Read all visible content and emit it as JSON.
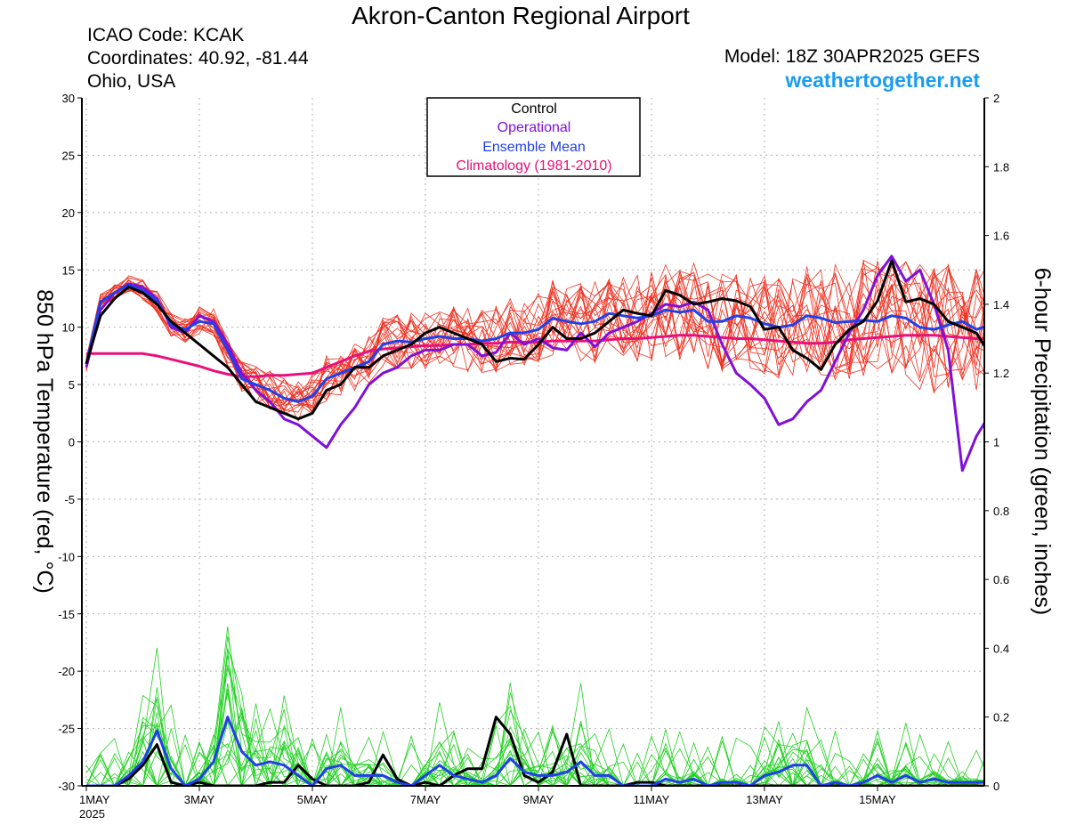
{
  "header": {
    "title": "Akron-Canton Regional Airport",
    "icao": "ICAO Code: KCAK",
    "coordinates": "Coordinates: 40.92, -81.44",
    "region": "Ohio, USA",
    "model": "Model: 18Z 30APR2025 GEFS",
    "website": "weathertogether.net"
  },
  "colors": {
    "control": "#000000",
    "operational": "#8010d8",
    "ensemble_mean": "#2040e8",
    "climatology": "#e8107a",
    "members_temp": "#f03020",
    "members_precip": "#20d020",
    "website": "#1a9cf0"
  },
  "chart_data": {
    "type": "line",
    "ylabel": "850 hPa Temperature (red, °C)",
    "y2label": "6-hour Precipitation (green, inches)",
    "ylim": [
      -30,
      30
    ],
    "y2lim": [
      0,
      2
    ],
    "yticks": [
      "30",
      "25",
      "20",
      "15",
      "10",
      "5",
      "0",
      "-5",
      "-10",
      "-15",
      "-20",
      "-25",
      "-30"
    ],
    "y2ticks": [
      "2",
      "1.8",
      "1.6",
      "1.4",
      "1.2",
      "1",
      "0.8",
      "0.6",
      "0.4",
      "0.2",
      "0"
    ],
    "xlim_days": [
      0,
      16
    ],
    "xticks": [
      {
        "day": 0,
        "label": "1MAY",
        "sub": "2025"
      },
      {
        "day": 2,
        "label": "3MAY",
        "sub": ""
      },
      {
        "day": 4,
        "label": "5MAY",
        "sub": ""
      },
      {
        "day": 6,
        "label": "7MAY",
        "sub": ""
      },
      {
        "day": 8,
        "label": "9MAY",
        "sub": ""
      },
      {
        "day": 10,
        "label": "11MAY",
        "sub": ""
      },
      {
        "day": 12,
        "label": "13MAY",
        "sub": ""
      },
      {
        "day": 14,
        "label": "15MAY",
        "sub": ""
      }
    ],
    "grid": true,
    "legend": {
      "placement": "top-center",
      "entries": [
        {
          "label": "Control",
          "color": "#000000"
        },
        {
          "label": "Operational",
          "color": "#8010d8"
        },
        {
          "label": "Ensemble Mean",
          "color": "#2040e8"
        },
        {
          "label": "Climatology (1981-2010)",
          "color": "#e8107a"
        }
      ]
    },
    "x_step_days": 0.25,
    "series": [
      {
        "key": "control_temp",
        "axis": "temp",
        "color": "#000000",
        "width": 3,
        "values": [
          6.8,
          11,
          12.5,
          13.5,
          13,
          12,
          10.5,
          9.5,
          8.5,
          7.5,
          6.5,
          5,
          3.5,
          3,
          2.5,
          2,
          2.5,
          4.5,
          5,
          6.5,
          6.5,
          7.5,
          8,
          8.5,
          9.5,
          10,
          9.5,
          9,
          8.5,
          7,
          7.3,
          7.2,
          8.5,
          10,
          9,
          9,
          9.5,
          10.5,
          11.5,
          11.2,
          11,
          13.2,
          12.8,
          12,
          12.2,
          12.5,
          12.3,
          11.8,
          9.8,
          10,
          8,
          7.3,
          6.3,
          8.5,
          9.8,
          10.5,
          12.3,
          15.8,
          12.2,
          12.5,
          12,
          10.5,
          10,
          9.5,
          7.5
        ]
      },
      {
        "key": "operational_temp",
        "axis": "temp",
        "color": "#8010d8",
        "width": 3,
        "values": [
          6.5,
          11.5,
          13,
          13.8,
          13.5,
          12.5,
          10,
          9.5,
          11,
          10.5,
          8.5,
          6,
          4.5,
          3.5,
          2,
          1.5,
          0.5,
          -0.5,
          1.5,
          3,
          5,
          6,
          6.5,
          7.5,
          8,
          8,
          8.5,
          8.5,
          7.5,
          7.8,
          9.5,
          8.5,
          9,
          8.2,
          8,
          9.5,
          8.3,
          9.5,
          10,
          10.5,
          11.2,
          12,
          11.8,
          12.2,
          11.5,
          8.5,
          6,
          5,
          3.8,
          1.5,
          2,
          3.5,
          4.5,
          7,
          9.5,
          11.5,
          14.5,
          16.2,
          14,
          15,
          12,
          8,
          -2.5,
          0.5,
          2.5,
          4,
          5,
          7,
          9.5
        ]
      },
      {
        "key": "ensemble_mean_temp",
        "axis": "temp",
        "color": "#2040e8",
        "width": 3,
        "values": [
          6.8,
          12.2,
          13,
          13.7,
          13.2,
          12.3,
          10.2,
          9.8,
          10.5,
          10.3,
          8,
          5.5,
          5,
          4.5,
          3.8,
          3.5,
          4,
          5.5,
          6,
          6.5,
          7,
          8.5,
          8.8,
          8.7,
          9,
          9.2,
          9,
          9,
          8.8,
          9,
          9.5,
          9.5,
          9.8,
          10.8,
          10.5,
          10.3,
          10.5,
          11.2,
          11,
          10.8,
          11,
          11.5,
          11.3,
          11.5,
          10.5,
          10.5,
          11,
          10.8,
          10.3,
          10,
          10.2,
          11,
          10.8,
          10.4,
          10.5,
          10.6,
          10.5,
          11,
          10.8,
          10,
          9.8,
          10.2,
          10.5,
          9.8,
          10.2
        ]
      },
      {
        "key": "climatology_temp",
        "axis": "temp",
        "color": "#e8107a",
        "width": 3,
        "values": [
          7.7,
          7.7,
          7.7,
          7.7,
          7.7,
          7.5,
          7.2,
          6.9,
          6.6,
          6.2,
          5.9,
          5.7,
          5.7,
          5.8,
          5.8,
          5.9,
          6,
          6.5,
          7,
          7.5,
          7.9,
          8.1,
          8.2,
          8.3,
          8.4,
          8.4,
          8.5,
          8.5,
          8.6,
          8.6,
          8.7,
          8.7,
          8.7,
          8.8,
          8.8,
          8.8,
          8.8,
          8.9,
          9,
          9,
          9.1,
          9.2,
          9.3,
          9.3,
          9.2,
          9.1,
          9,
          9,
          8.9,
          8.8,
          8.7,
          8.6,
          8.6,
          8.7,
          8.9,
          9,
          9.1,
          9.2,
          9.3,
          9.3,
          9.3,
          9.2,
          9.1,
          9,
          9
        ]
      },
      {
        "key": "control_precip",
        "axis": "precip",
        "color": "#000000",
        "width": 3,
        "values": [
          0,
          0,
          0,
          0.02,
          0.06,
          0.12,
          0.01,
          0,
          0.01,
          0,
          0,
          0,
          0,
          0.01,
          0.01,
          0.06,
          0.02,
          0,
          0,
          0,
          0.01,
          0.09,
          0.02,
          0,
          0.01,
          0,
          0.03,
          0.05,
          0.05,
          0.2,
          0.15,
          0.03,
          0.01,
          0.04,
          0.15,
          0,
          0,
          0,
          0,
          0.01,
          0.01,
          0,
          0,
          0,
          0,
          0,
          0,
          0,
          0,
          0,
          0,
          0,
          0,
          0,
          0,
          0,
          0,
          0,
          0,
          0,
          0,
          0,
          0,
          0,
          0
        ]
      },
      {
        "key": "ensemble_mean_precip",
        "axis": "precip",
        "color": "#2040e8",
        "width": 3,
        "values": [
          0,
          0,
          0,
          0.03,
          0.07,
          0.16,
          0.05,
          0,
          0.02,
          0.07,
          0.2,
          0.1,
          0.06,
          0.07,
          0.06,
          0.03,
          0,
          0.05,
          0.06,
          0.03,
          0.03,
          0.03,
          0.01,
          0,
          0.03,
          0.06,
          0.03,
          0.02,
          0.01,
          0.03,
          0.08,
          0.04,
          0.03,
          0.03,
          0.04,
          0.07,
          0.03,
          0.03,
          0,
          0,
          0,
          0.02,
          0.01,
          0.02,
          0,
          0.01,
          0.01,
          0,
          0.03,
          0.04,
          0.06,
          0.06,
          0,
          0.01,
          0,
          0.01,
          0.03,
          0.01,
          0.03,
          0.01,
          0.02,
          0.01,
          0.01,
          0.01,
          0.01
        ]
      }
    ]
  }
}
